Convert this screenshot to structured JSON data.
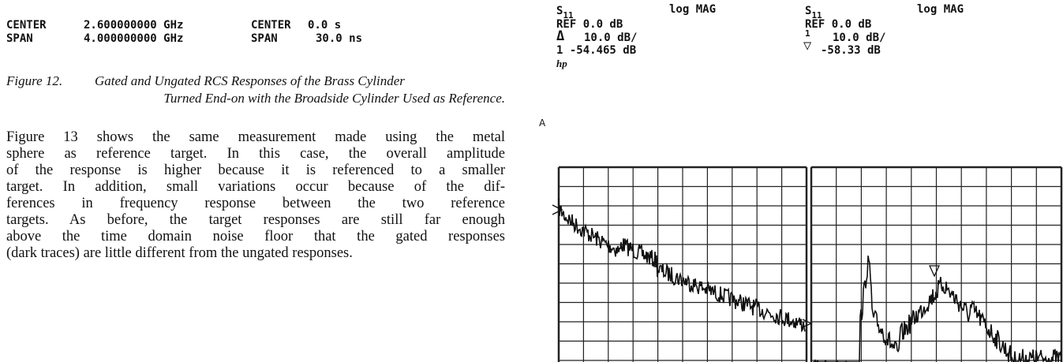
{
  "header": {
    "rows": [
      [
        "CENTER",
        "2.600000000 GHz",
        "CENTER",
        "0.0 s"
      ],
      [
        "SPAN",
        "4.000000000 GHz",
        "SPAN",
        "30.0 ns"
      ]
    ]
  },
  "caption": {
    "label": "Figure 12.",
    "lines": [
      "Gated and Ungated RCS Responses of the Brass Cylinder",
      "Turned End-on with the Broadside Cylinder Used as Reference."
    ]
  },
  "paragraph": {
    "lines": [
      "Figure 13 shows the same measurement made using the metal",
      "sphere as reference target. In this case, the overall amplitude",
      "of the response is higher because it is referenced to a smaller",
      "target. In addition, small variations occur because of the dif-",
      "ferences in frequency response between the two reference",
      "targets. As before, the target responses are still far enough",
      "above the time domain noise floor that the gated responses",
      "(dark traces) are little different from the ungated responses."
    ]
  },
  "plots": [
    {
      "param": "S",
      "sub": "11",
      "format": "log MAG",
      "ref": "REF 0.0 dB",
      "marker_symbol": "Δ",
      "scale": "10.0 dB/",
      "marker_line": "1 -54.465 dB",
      "logo": "hp"
    },
    {
      "param": "S",
      "sub": "11",
      "format": "log MAG",
      "ref": "REF 0.0 dB",
      "marker_number": "1",
      "marker_symbol": "▽",
      "scale": "10.0 dB/",
      "marker_value": "-58.33 dB"
    }
  ],
  "panel_label": "A"
}
